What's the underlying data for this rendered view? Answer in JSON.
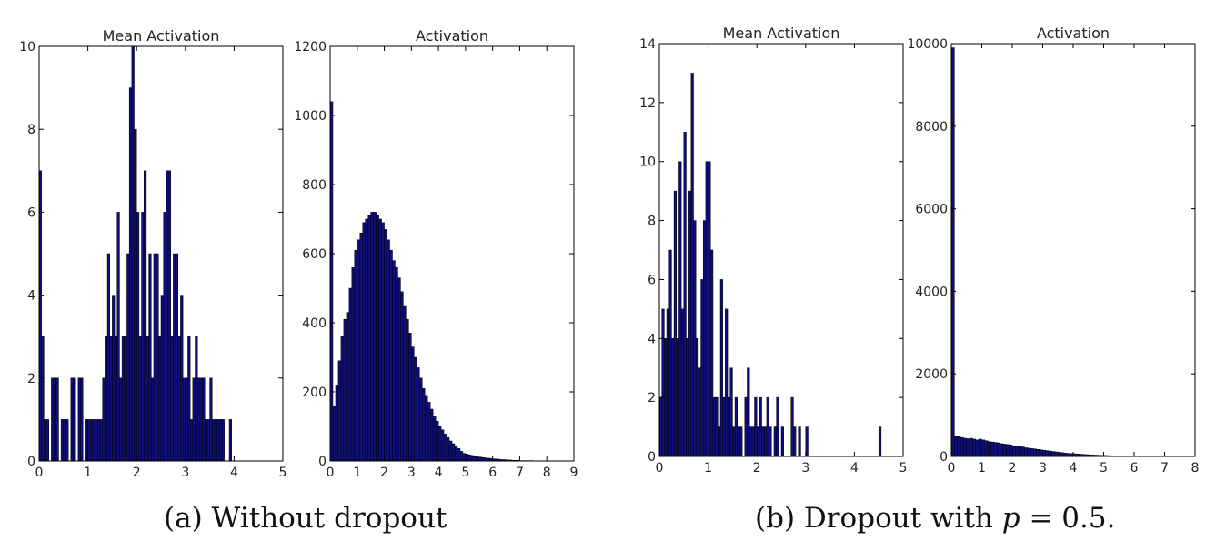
{
  "captions": {
    "a": "(a) Without dropout",
    "b_prefix": "(b) Dropout with ",
    "b_var": "p",
    "b_suffix": " = 0.5."
  },
  "colors": {
    "bar_fill": "#0e0e78",
    "bar_edge": "#000000",
    "axis": "#000000"
  },
  "chart_data": [
    {
      "type": "bar",
      "title": "Mean Activation",
      "xlim": [
        0,
        5
      ],
      "ylim": [
        0,
        10
      ],
      "xticks": [
        0,
        1,
        2,
        3,
        4,
        5
      ],
      "xtick_labels": [
        "0",
        "1",
        "2",
        "3",
        "4",
        "5"
      ],
      "yticks": [
        0,
        2,
        4,
        6,
        8,
        10
      ],
      "ytick_labels": [
        "0",
        "2",
        "4",
        "6",
        "8",
        "10"
      ],
      "bin_width": 0.05,
      "values": [
        7,
        3,
        1,
        1,
        0,
        2,
        2,
        2,
        0,
        1,
        1,
        1,
        0,
        2,
        2,
        0,
        2,
        2,
        0,
        1,
        1,
        1,
        1,
        1,
        1,
        1,
        2,
        3,
        5,
        3,
        4,
        3,
        6,
        2,
        3,
        3,
        5,
        9,
        10,
        8,
        6,
        3,
        6,
        7,
        3,
        5,
        2,
        5,
        5,
        3,
        4,
        6,
        7,
        7,
        3,
        5,
        5,
        3,
        4,
        2,
        2,
        3,
        1,
        2,
        3,
        2,
        2,
        2,
        1,
        1,
        2,
        1,
        1,
        1,
        1,
        1,
        0,
        0,
        1
      ]
    },
    {
      "type": "bar",
      "title": "Activation",
      "xlim": [
        0,
        9
      ],
      "ylim": [
        0,
        1200
      ],
      "xticks": [
        0,
        1,
        2,
        3,
        4,
        5,
        6,
        7,
        8,
        9
      ],
      "xtick_labels": [
        "0",
        "1",
        "2",
        "3",
        "4",
        "5",
        "6",
        "7",
        "8",
        "9"
      ],
      "yticks": [
        0,
        200,
        400,
        600,
        800,
        1000,
        1200
      ],
      "ytick_labels": [
        "0",
        "200",
        "400",
        "600",
        "800",
        "1000",
        "1200"
      ],
      "bin_width": 0.1,
      "values": [
        1040,
        160,
        220,
        290,
        360,
        410,
        430,
        500,
        560,
        610,
        640,
        660,
        690,
        700,
        710,
        720,
        720,
        710,
        700,
        690,
        670,
        640,
        610,
        580,
        560,
        530,
        490,
        450,
        410,
        370,
        330,
        300,
        270,
        240,
        210,
        190,
        170,
        150,
        130,
        115,
        100,
        90,
        78,
        68,
        58,
        50,
        44,
        36,
        28,
        22,
        20,
        18,
        16,
        14,
        12,
        11,
        10,
        9,
        8,
        7,
        6,
        6,
        5,
        4,
        4,
        3,
        3,
        2,
        2,
        2,
        1,
        1,
        1,
        1,
        1,
        0,
        0,
        0,
        0,
        0
      ]
    },
    {
      "type": "bar",
      "title": "Mean Activation",
      "xlim": [
        0,
        5
      ],
      "ylim": [
        0,
        14
      ],
      "xticks": [
        0,
        1,
        2,
        3,
        4,
        5
      ],
      "xtick_labels": [
        "0",
        "1",
        "2",
        "3",
        "4",
        "5"
      ],
      "yticks": [
        0,
        2,
        4,
        6,
        8,
        10,
        12,
        14
      ],
      "ytick_labels": [
        "0",
        "2",
        "4",
        "6",
        "8",
        "10",
        "12",
        "14"
      ],
      "bin_width": 0.05,
      "values": [
        2,
        5,
        4,
        5,
        7,
        4,
        9,
        4,
        10,
        5,
        11,
        4,
        9,
        13,
        8,
        4,
        3,
        6,
        8,
        10,
        10,
        7,
        2,
        2,
        1,
        6,
        2,
        5,
        2,
        3,
        1,
        2,
        1,
        1,
        0,
        2,
        3,
        1,
        1,
        2,
        1,
        2,
        1,
        1,
        2,
        1,
        0,
        1,
        2,
        0,
        1,
        0,
        0,
        0,
        2,
        1,
        0,
        1,
        0,
        0,
        1,
        0,
        0,
        0,
        0,
        0,
        0,
        0,
        0,
        0,
        0,
        0,
        0,
        0,
        0,
        0,
        0,
        0,
        0,
        0,
        0,
        0,
        0,
        0,
        0,
        0,
        0,
        0,
        0,
        0,
        1
      ]
    },
    {
      "type": "bar",
      "title": "Activation",
      "xlim": [
        0,
        8
      ],
      "ylim": [
        0,
        10000
      ],
      "xticks": [
        0,
        1,
        2,
        3,
        4,
        5,
        6,
        7,
        8
      ],
      "xtick_labels": [
        "0",
        "1",
        "2",
        "3",
        "4",
        "5",
        "6",
        "7",
        "8"
      ],
      "yticks": [
        0,
        2000,
        4000,
        6000,
        8000,
        10000
      ],
      "ytick_labels": [
        "0",
        "2000",
        "4000",
        "6000",
        "8000",
        "10000"
      ],
      "bin_width": 0.1,
      "values": [
        9900,
        500,
        480,
        460,
        440,
        430,
        440,
        420,
        400,
        420,
        400,
        380,
        360,
        350,
        340,
        330,
        310,
        300,
        290,
        280,
        260,
        250,
        240,
        230,
        210,
        200,
        190,
        180,
        170,
        160,
        150,
        140,
        130,
        120,
        110,
        100,
        90,
        80,
        75,
        70,
        65,
        60,
        55,
        50,
        45,
        40,
        36,
        33,
        30,
        27,
        24,
        21,
        18,
        16,
        14,
        12,
        10,
        9,
        8,
        7,
        6,
        5,
        4,
        4,
        3,
        3,
        2,
        2,
        2,
        1,
        1,
        0,
        0,
        0,
        0,
        0,
        0,
        0,
        0,
        0
      ]
    }
  ]
}
